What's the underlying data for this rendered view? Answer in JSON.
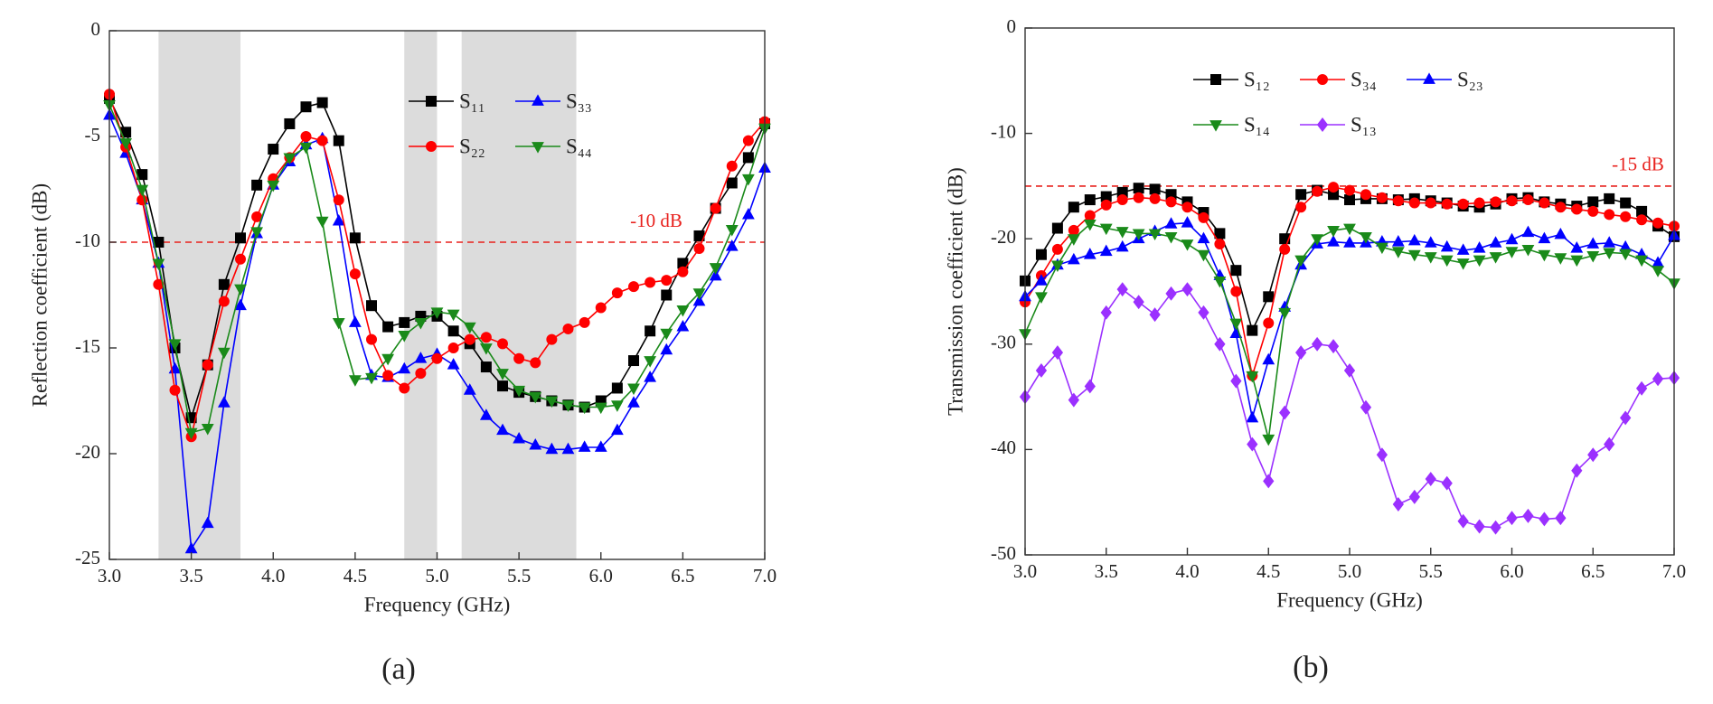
{
  "chart_data": [
    {
      "type": "line",
      "panel_label": "(a)",
      "xlabel": "Frequency (GHz)",
      "ylabel": "Reflection coefficient (dB)",
      "xlim": [
        3,
        7
      ],
      "ylim": [
        -25,
        0
      ],
      "xticks": [
        {
          "value": 3,
          "label": "3.0"
        },
        3.5,
        {
          "value": 4,
          "label": "4.0"
        },
        4.5,
        {
          "value": 5,
          "label": "5.0"
        },
        5.5,
        {
          "value": 6,
          "label": "6.0"
        },
        6.5,
        {
          "value": 7,
          "label": "7.0"
        }
      ],
      "yticks": [
        0,
        -5,
        -10,
        -15,
        -20,
        -25
      ],
      "shaded_regions": [
        [
          3.3,
          3.8
        ],
        [
          4.8,
          5.0
        ],
        [
          5.15,
          5.85
        ]
      ],
      "reference_line": {
        "value": -10,
        "label": "-10 dB",
        "color": "#e8211d"
      },
      "x": [
        3.0,
        3.1,
        3.2,
        3.3,
        3.4,
        3.5,
        3.6,
        3.7,
        3.8,
        3.9,
        4.0,
        4.1,
        4.2,
        4.3,
        4.4,
        4.5,
        4.6,
        4.7,
        4.8,
        4.9,
        5.0,
        5.1,
        5.2,
        5.3,
        5.4,
        5.5,
        5.6,
        5.7,
        5.8,
        5.9,
        6.0,
        6.1,
        6.2,
        6.3,
        6.4,
        6.5,
        6.6,
        6.7,
        6.8,
        6.9,
        7.0
      ],
      "series": [
        {
          "name": "S₁₁",
          "color": "#000000",
          "marker": "square",
          "values": [
            -3.2,
            -4.8,
            -6.8,
            -10,
            -15,
            -18.3,
            -15.8,
            -12,
            -9.8,
            -7.3,
            -5.6,
            -4.4,
            -3.6,
            -3.4,
            -5.2,
            -9.8,
            -13,
            -14,
            -13.8,
            -13.5,
            -13.5,
            -14.2,
            -14.8,
            -15.9,
            -16.8,
            -17.1,
            -17.3,
            -17.5,
            -17.7,
            -17.8,
            -17.5,
            -16.9,
            -15.6,
            -14.2,
            -12.5,
            -11,
            -9.7,
            -8.4,
            -7.2,
            -6,
            -4.4
          ]
        },
        {
          "name": "S₃₃",
          "color": "#0000ff",
          "marker": "triangle-up",
          "values": [
            -4,
            -5.8,
            -8,
            -11,
            -16,
            -24.5,
            -23.3,
            -17.6,
            -13,
            -9.6,
            -7.3,
            -6.2,
            -5.4,
            -5.1,
            -9,
            -13.8,
            -16.3,
            -16.4,
            -16,
            -15.5,
            -15.3,
            -15.8,
            -17,
            -18.2,
            -18.9,
            -19.3,
            -19.6,
            -19.8,
            -19.8,
            -19.7,
            -19.7,
            -18.9,
            -17.6,
            -16.4,
            -15.1,
            -14,
            -12.8,
            -11.6,
            -10.2,
            -8.7,
            -6.5
          ]
        },
        {
          "name": "S₂₂",
          "color": "#ff0000",
          "marker": "circle",
          "values": [
            -3,
            -5.5,
            -8,
            -12,
            -17,
            -19.2,
            -15.8,
            -12.8,
            -10.8,
            -8.8,
            -7,
            -6,
            -5,
            -5.2,
            -8,
            -11.5,
            -14.6,
            -16.3,
            -16.9,
            -16.2,
            -15.5,
            -15,
            -14.6,
            -14.5,
            -14.8,
            -15.5,
            -15.7,
            -14.6,
            -14.1,
            -13.8,
            -13.1,
            -12.4,
            -12.1,
            -11.9,
            -11.8,
            -11.4,
            -10.3,
            -8.4,
            -6.4,
            -5.2,
            -4.3
          ]
        },
        {
          "name": "S₄₄",
          "color": "#1a8a1a",
          "marker": "triangle-down",
          "values": [
            -3.5,
            -5.3,
            -7.5,
            -11,
            -14.8,
            -19,
            -18.8,
            -15.2,
            -12.2,
            -9.5,
            -7.3,
            -6,
            -5.5,
            -9,
            -13.8,
            -16.5,
            -16.4,
            -15.5,
            -14.4,
            -13.8,
            -13.3,
            -13.4,
            -14,
            -15,
            -16.2,
            -17,
            -17.3,
            -17.5,
            -17.7,
            -17.8,
            -17.8,
            -17.7,
            -16.9,
            -15.6,
            -14.3,
            -13.2,
            -12.4,
            -11.2,
            -9.4,
            -7,
            -4.6
          ]
        }
      ]
    },
    {
      "type": "line",
      "panel_label": "(b)",
      "xlabel": "Frequency (GHz)",
      "ylabel": "Transmission coefficient (dB)",
      "xlim": [
        3,
        7
      ],
      "ylim": [
        -50,
        0
      ],
      "xticks": [
        {
          "value": 3,
          "label": "3.0"
        },
        3.5,
        {
          "value": 4,
          "label": "4.0"
        },
        4.5,
        {
          "value": 5,
          "label": "5.0"
        },
        5.5,
        {
          "value": 6,
          "label": "6.0"
        },
        6.5,
        {
          "value": 7,
          "label": "7.0"
        }
      ],
      "yticks": [
        0,
        -10,
        -20,
        -30,
        -40,
        -50
      ],
      "reference_line": {
        "value": -15,
        "label": "-15 dB",
        "color": "#e8211d"
      },
      "x": [
        3.0,
        3.1,
        3.2,
        3.3,
        3.4,
        3.5,
        3.6,
        3.7,
        3.8,
        3.9,
        4.0,
        4.1,
        4.2,
        4.3,
        4.4,
        4.5,
        4.6,
        4.7,
        4.8,
        4.9,
        5.0,
        5.1,
        5.2,
        5.3,
        5.4,
        5.5,
        5.6,
        5.7,
        5.8,
        5.9,
        6.0,
        6.1,
        6.2,
        6.3,
        6.4,
        6.5,
        6.6,
        6.7,
        6.8,
        6.9,
        7.0
      ],
      "series": [
        {
          "name": "S₁₂",
          "color": "#000000",
          "marker": "square",
          "values": [
            -24,
            -21.5,
            -19,
            -17,
            -16.3,
            -16,
            -15.6,
            -15.2,
            -15.3,
            -15.8,
            -16.5,
            -17.5,
            -19.5,
            -23,
            -28.7,
            -25.5,
            -20,
            -15.8,
            -15.4,
            -15.8,
            -16.3,
            -16.2,
            -16.2,
            -16.3,
            -16.2,
            -16.4,
            -16.6,
            -16.9,
            -17,
            -16.7,
            -16.2,
            -16.1,
            -16.5,
            -16.7,
            -16.9,
            -16.5,
            -16.2,
            -16.6,
            -17.4,
            -18.8,
            -19.8
          ]
        },
        {
          "name": "S₃₄",
          "color": "#ff0000",
          "marker": "circle",
          "values": [
            -26,
            -23.5,
            -21,
            -19.2,
            -17.8,
            -16.8,
            -16.3,
            -16.1,
            -16.2,
            -16.5,
            -17,
            -18,
            -20.5,
            -25,
            -33,
            -28,
            -21,
            -17,
            -15.5,
            -15.1,
            -15.4,
            -15.8,
            -16.1,
            -16.4,
            -16.6,
            -16.6,
            -16.7,
            -16.7,
            -16.6,
            -16.5,
            -16.4,
            -16.3,
            -16.6,
            -17,
            -17.2,
            -17.4,
            -17.7,
            -17.9,
            -18.2,
            -18.5,
            -18.8
          ]
        },
        {
          "name": "S₂₃",
          "color": "#0000ff",
          "marker": "triangle-up",
          "values": [
            -25.5,
            -24,
            -22.5,
            -22,
            -21.5,
            -21.2,
            -20.8,
            -20,
            -19.3,
            -18.6,
            -18.5,
            -20,
            -23.5,
            -29,
            -37,
            -31.5,
            -26.5,
            -22.5,
            -20.5,
            -20.3,
            -20.4,
            -20.4,
            -20.3,
            -20.3,
            -20.2,
            -20.4,
            -20.8,
            -21.1,
            -20.9,
            -20.4,
            -20.1,
            -19.4,
            -20,
            -19.6,
            -20.9,
            -20.5,
            -20.4,
            -20.8,
            -21.5,
            -22.3,
            -19.7
          ]
        },
        {
          "name": "S₁₄",
          "color": "#1a8a1a",
          "marker": "triangle-down",
          "values": [
            -29,
            -25.5,
            -22.5,
            -20,
            -18.6,
            -19,
            -19.3,
            -19.5,
            -19.5,
            -19.8,
            -20.5,
            -21.5,
            -24,
            -28,
            -33,
            -39,
            -27,
            -22,
            -20,
            -19.2,
            -19,
            -19.8,
            -20.8,
            -21.2,
            -21.5,
            -21.7,
            -22,
            -22.3,
            -22,
            -21.7,
            -21.2,
            -21,
            -21.5,
            -21.8,
            -22,
            -21.6,
            -21.3,
            -21.4,
            -22,
            -23,
            -24.2
          ]
        },
        {
          "name": "S₁₃",
          "color": "#9b30ff",
          "marker": "diamond",
          "values": [
            -35,
            -32.5,
            -30.8,
            -35.3,
            -34,
            -27,
            -24.8,
            -26,
            -27.2,
            -25.2,
            -24.8,
            -27,
            -30,
            -33.5,
            -39.5,
            -43,
            -36.5,
            -30.8,
            -30,
            -30.2,
            -32.5,
            -36,
            -40.5,
            -45.2,
            -44.5,
            -42.8,
            -43.2,
            -46.8,
            -47.3,
            -47.4,
            -46.5,
            -46.3,
            -46.6,
            -46.5,
            -42,
            -40.5,
            -39.5,
            -37,
            -34.2,
            -33.3,
            -33.2
          ]
        }
      ]
    }
  ]
}
